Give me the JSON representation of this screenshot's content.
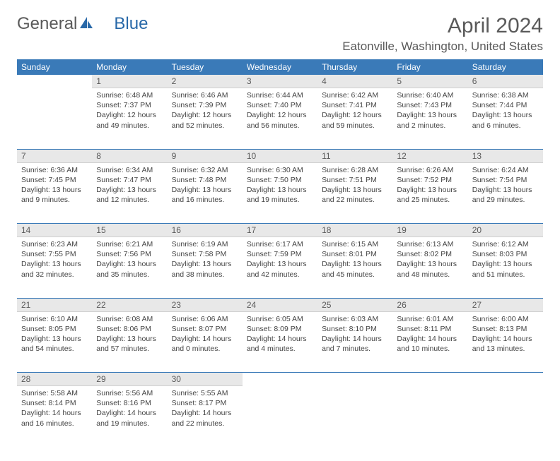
{
  "logo": {
    "part1": "General",
    "part2": "Blue"
  },
  "title": "April 2024",
  "location": "Eatonville, Washington, United States",
  "colors": {
    "header_bg": "#3a7ab8",
    "header_text": "#ffffff",
    "daynum_bg": "#e8e8e8",
    "text": "#5a5a5a",
    "body_text": "#444444",
    "week_border": "#3a7ab8"
  },
  "weekdays": [
    "Sunday",
    "Monday",
    "Tuesday",
    "Wednesday",
    "Thursday",
    "Friday",
    "Saturday"
  ],
  "weeks": [
    [
      null,
      {
        "n": "1",
        "sr": "Sunrise: 6:48 AM",
        "ss": "Sunset: 7:37 PM",
        "dl": "Daylight: 12 hours and 49 minutes."
      },
      {
        "n": "2",
        "sr": "Sunrise: 6:46 AM",
        "ss": "Sunset: 7:39 PM",
        "dl": "Daylight: 12 hours and 52 minutes."
      },
      {
        "n": "3",
        "sr": "Sunrise: 6:44 AM",
        "ss": "Sunset: 7:40 PM",
        "dl": "Daylight: 12 hours and 56 minutes."
      },
      {
        "n": "4",
        "sr": "Sunrise: 6:42 AM",
        "ss": "Sunset: 7:41 PM",
        "dl": "Daylight: 12 hours and 59 minutes."
      },
      {
        "n": "5",
        "sr": "Sunrise: 6:40 AM",
        "ss": "Sunset: 7:43 PM",
        "dl": "Daylight: 13 hours and 2 minutes."
      },
      {
        "n": "6",
        "sr": "Sunrise: 6:38 AM",
        "ss": "Sunset: 7:44 PM",
        "dl": "Daylight: 13 hours and 6 minutes."
      }
    ],
    [
      {
        "n": "7",
        "sr": "Sunrise: 6:36 AM",
        "ss": "Sunset: 7:45 PM",
        "dl": "Daylight: 13 hours and 9 minutes."
      },
      {
        "n": "8",
        "sr": "Sunrise: 6:34 AM",
        "ss": "Sunset: 7:47 PM",
        "dl": "Daylight: 13 hours and 12 minutes."
      },
      {
        "n": "9",
        "sr": "Sunrise: 6:32 AM",
        "ss": "Sunset: 7:48 PM",
        "dl": "Daylight: 13 hours and 16 minutes."
      },
      {
        "n": "10",
        "sr": "Sunrise: 6:30 AM",
        "ss": "Sunset: 7:50 PM",
        "dl": "Daylight: 13 hours and 19 minutes."
      },
      {
        "n": "11",
        "sr": "Sunrise: 6:28 AM",
        "ss": "Sunset: 7:51 PM",
        "dl": "Daylight: 13 hours and 22 minutes."
      },
      {
        "n": "12",
        "sr": "Sunrise: 6:26 AM",
        "ss": "Sunset: 7:52 PM",
        "dl": "Daylight: 13 hours and 25 minutes."
      },
      {
        "n": "13",
        "sr": "Sunrise: 6:24 AM",
        "ss": "Sunset: 7:54 PM",
        "dl": "Daylight: 13 hours and 29 minutes."
      }
    ],
    [
      {
        "n": "14",
        "sr": "Sunrise: 6:23 AM",
        "ss": "Sunset: 7:55 PM",
        "dl": "Daylight: 13 hours and 32 minutes."
      },
      {
        "n": "15",
        "sr": "Sunrise: 6:21 AM",
        "ss": "Sunset: 7:56 PM",
        "dl": "Daylight: 13 hours and 35 minutes."
      },
      {
        "n": "16",
        "sr": "Sunrise: 6:19 AM",
        "ss": "Sunset: 7:58 PM",
        "dl": "Daylight: 13 hours and 38 minutes."
      },
      {
        "n": "17",
        "sr": "Sunrise: 6:17 AM",
        "ss": "Sunset: 7:59 PM",
        "dl": "Daylight: 13 hours and 42 minutes."
      },
      {
        "n": "18",
        "sr": "Sunrise: 6:15 AM",
        "ss": "Sunset: 8:01 PM",
        "dl": "Daylight: 13 hours and 45 minutes."
      },
      {
        "n": "19",
        "sr": "Sunrise: 6:13 AM",
        "ss": "Sunset: 8:02 PM",
        "dl": "Daylight: 13 hours and 48 minutes."
      },
      {
        "n": "20",
        "sr": "Sunrise: 6:12 AM",
        "ss": "Sunset: 8:03 PM",
        "dl": "Daylight: 13 hours and 51 minutes."
      }
    ],
    [
      {
        "n": "21",
        "sr": "Sunrise: 6:10 AM",
        "ss": "Sunset: 8:05 PM",
        "dl": "Daylight: 13 hours and 54 minutes."
      },
      {
        "n": "22",
        "sr": "Sunrise: 6:08 AM",
        "ss": "Sunset: 8:06 PM",
        "dl": "Daylight: 13 hours and 57 minutes."
      },
      {
        "n": "23",
        "sr": "Sunrise: 6:06 AM",
        "ss": "Sunset: 8:07 PM",
        "dl": "Daylight: 14 hours and 0 minutes."
      },
      {
        "n": "24",
        "sr": "Sunrise: 6:05 AM",
        "ss": "Sunset: 8:09 PM",
        "dl": "Daylight: 14 hours and 4 minutes."
      },
      {
        "n": "25",
        "sr": "Sunrise: 6:03 AM",
        "ss": "Sunset: 8:10 PM",
        "dl": "Daylight: 14 hours and 7 minutes."
      },
      {
        "n": "26",
        "sr": "Sunrise: 6:01 AM",
        "ss": "Sunset: 8:11 PM",
        "dl": "Daylight: 14 hours and 10 minutes."
      },
      {
        "n": "27",
        "sr": "Sunrise: 6:00 AM",
        "ss": "Sunset: 8:13 PM",
        "dl": "Daylight: 14 hours and 13 minutes."
      }
    ],
    [
      {
        "n": "28",
        "sr": "Sunrise: 5:58 AM",
        "ss": "Sunset: 8:14 PM",
        "dl": "Daylight: 14 hours and 16 minutes."
      },
      {
        "n": "29",
        "sr": "Sunrise: 5:56 AM",
        "ss": "Sunset: 8:16 PM",
        "dl": "Daylight: 14 hours and 19 minutes."
      },
      {
        "n": "30",
        "sr": "Sunrise: 5:55 AM",
        "ss": "Sunset: 8:17 PM",
        "dl": "Daylight: 14 hours and 22 minutes."
      },
      null,
      null,
      null,
      null
    ]
  ]
}
